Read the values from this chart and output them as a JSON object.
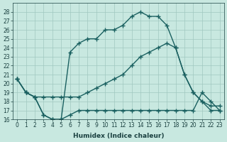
{
  "xlabel": "Humidex (Indice chaleur)",
  "background_color": "#c8e8e0",
  "grid_color": "#a0c8c0",
  "line_color": "#1a6060",
  "xlim": [
    -0.5,
    23.5
  ],
  "ylim": [
    16,
    29
  ],
  "yticks": [
    16,
    17,
    18,
    19,
    20,
    21,
    22,
    23,
    24,
    25,
    26,
    27,
    28
  ],
  "xticks": [
    0,
    1,
    2,
    3,
    4,
    5,
    6,
    7,
    8,
    9,
    10,
    11,
    12,
    13,
    14,
    15,
    16,
    17,
    18,
    19,
    20,
    21,
    22,
    23
  ],
  "line1_x": [
    0,
    1,
    2,
    3,
    4,
    5,
    6,
    7,
    8,
    9,
    10,
    11,
    12,
    13,
    14,
    15,
    16,
    17,
    18,
    19,
    20,
    21,
    22,
    23
  ],
  "line1_y": [
    20.5,
    19,
    18.5,
    16.5,
    16,
    16,
    23.5,
    24.5,
    25,
    25,
    26,
    26,
    26.5,
    27.5,
    28,
    27.5,
    27.5,
    26.5,
    24,
    21,
    19,
    18,
    17.5,
    17.5
  ],
  "line2_x": [
    0,
    1,
    2,
    3,
    4,
    5,
    6,
    7,
    8,
    9,
    10,
    11,
    12,
    13,
    14,
    15,
    16,
    17,
    18,
    19,
    20,
    21,
    22,
    23
  ],
  "line2_y": [
    20.5,
    19,
    18.5,
    18.5,
    18.5,
    18.5,
    18.5,
    18.5,
    19,
    19.5,
    20,
    20.5,
    21,
    22,
    23,
    23.5,
    24,
    24.5,
    24,
    21,
    19,
    18,
    17,
    17
  ],
  "line3_x": [
    0,
    1,
    2,
    3,
    4,
    5,
    6,
    7,
    8,
    9,
    10,
    11,
    12,
    13,
    14,
    15,
    16,
    17,
    18,
    19,
    20,
    21,
    22,
    23
  ],
  "line3_y": [
    20.5,
    19,
    18.5,
    16.5,
    16,
    16,
    16.5,
    17,
    17,
    17,
    17,
    17,
    17,
    17,
    17,
    17,
    17,
    17,
    17,
    17,
    17,
    19,
    18,
    17
  ],
  "marker": "+"
}
